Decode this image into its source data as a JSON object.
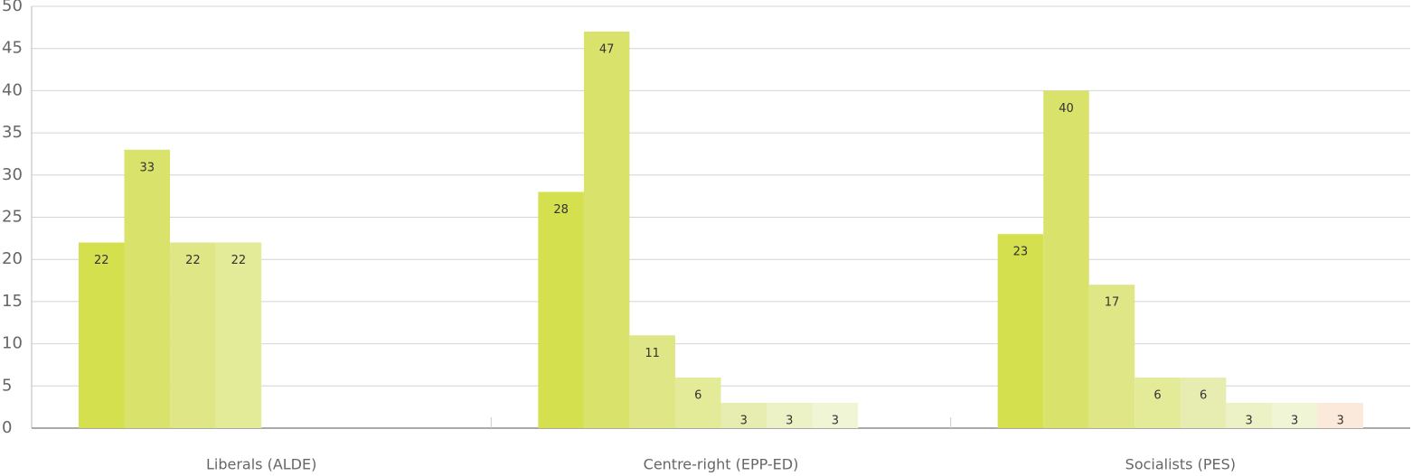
{
  "chart_data": {
    "type": "bar",
    "categories": [
      "Liberals (ALDE)",
      "Centre-right (EPP-ED)",
      "Socialists (PES)"
    ],
    "series": [
      {
        "color": "#d4e04e",
        "values": [
          22,
          28,
          23
        ]
      },
      {
        "color": "#d9e26a",
        "values": [
          33,
          47,
          40
        ]
      },
      {
        "color": "#dee685",
        "values": [
          22,
          11,
          17
        ]
      },
      {
        "color": "#e3ea98",
        "values": [
          22,
          6,
          6
        ]
      },
      {
        "color": "#e7edb0",
        "values": [
          null,
          3,
          6
        ]
      },
      {
        "color": "#ecf1c6",
        "values": [
          null,
          3,
          3
        ]
      },
      {
        "color": "#f0f5d6",
        "values": [
          null,
          3,
          3
        ]
      },
      {
        "color": "#fbeadc",
        "values": [
          null,
          null,
          3
        ]
      }
    ],
    "ylim": [
      0,
      50
    ],
    "yticks": [
      0,
      5,
      10,
      15,
      20,
      25,
      30,
      35,
      40,
      45,
      50
    ],
    "grid": true
  }
}
